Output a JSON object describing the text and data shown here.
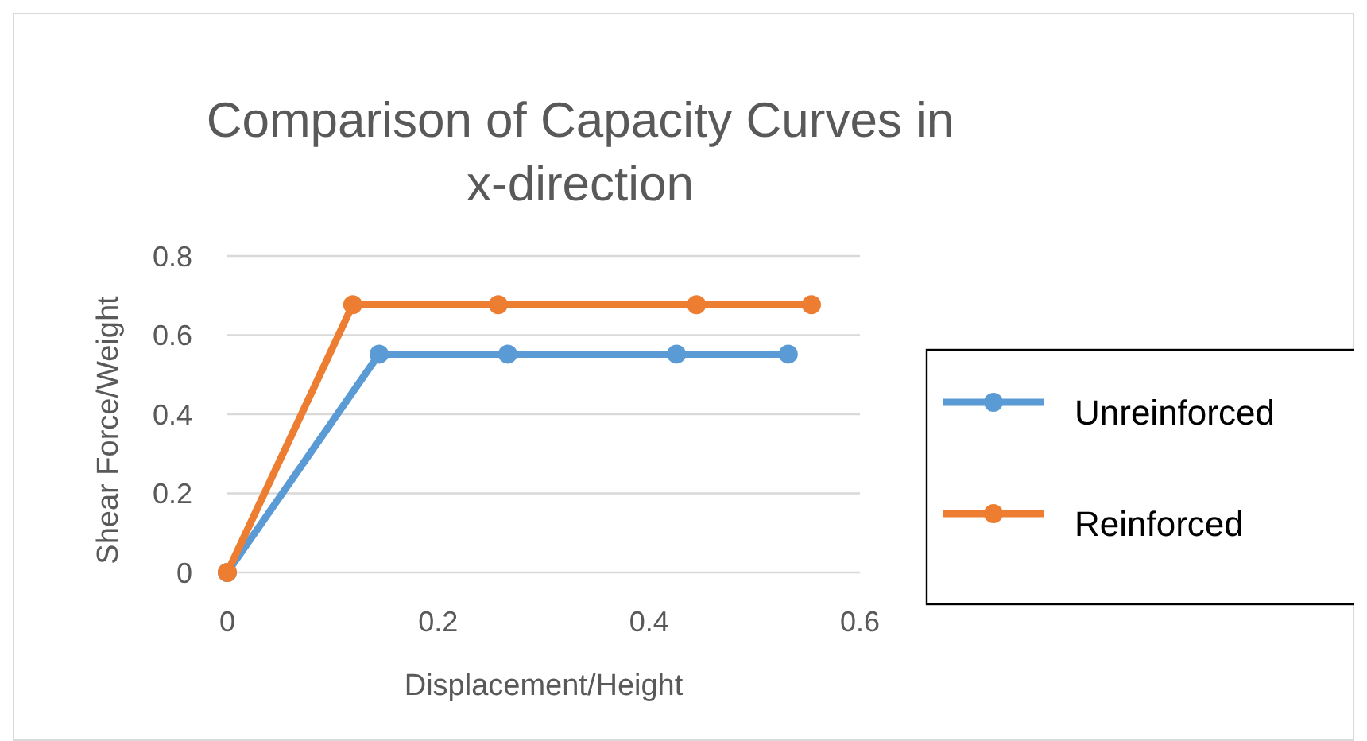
{
  "chart_data": {
    "type": "line",
    "title": "Comparison of Capacity Curves in x-direction",
    "xlabel": "Displacement/Height",
    "ylabel": "Shear Force/Weight",
    "series": [
      {
        "name": "Unreinforced",
        "color": "#5b9bd5",
        "x": [
          0,
          0.144,
          0.266,
          0.426,
          0.532
        ],
        "values": [
          0,
          0.552,
          0.552,
          0.552,
          0.552
        ]
      },
      {
        "name": "Reinforced",
        "color": "#ed7d31",
        "x": [
          0,
          0.119,
          0.257,
          0.445,
          0.554
        ],
        "values": [
          0,
          0.677,
          0.677,
          0.677,
          0.677
        ]
      }
    ],
    "xlim": [
      0,
      0.6
    ],
    "xticks": [
      0,
      0.2,
      0.4,
      0.6
    ],
    "ylim": [
      0,
      0.8
    ],
    "yticks": [
      0,
      0.2,
      0.4,
      0.6,
      0.8
    ],
    "grid": "y",
    "legend": "right",
    "marker": "circle",
    "line_style": "solid"
  }
}
